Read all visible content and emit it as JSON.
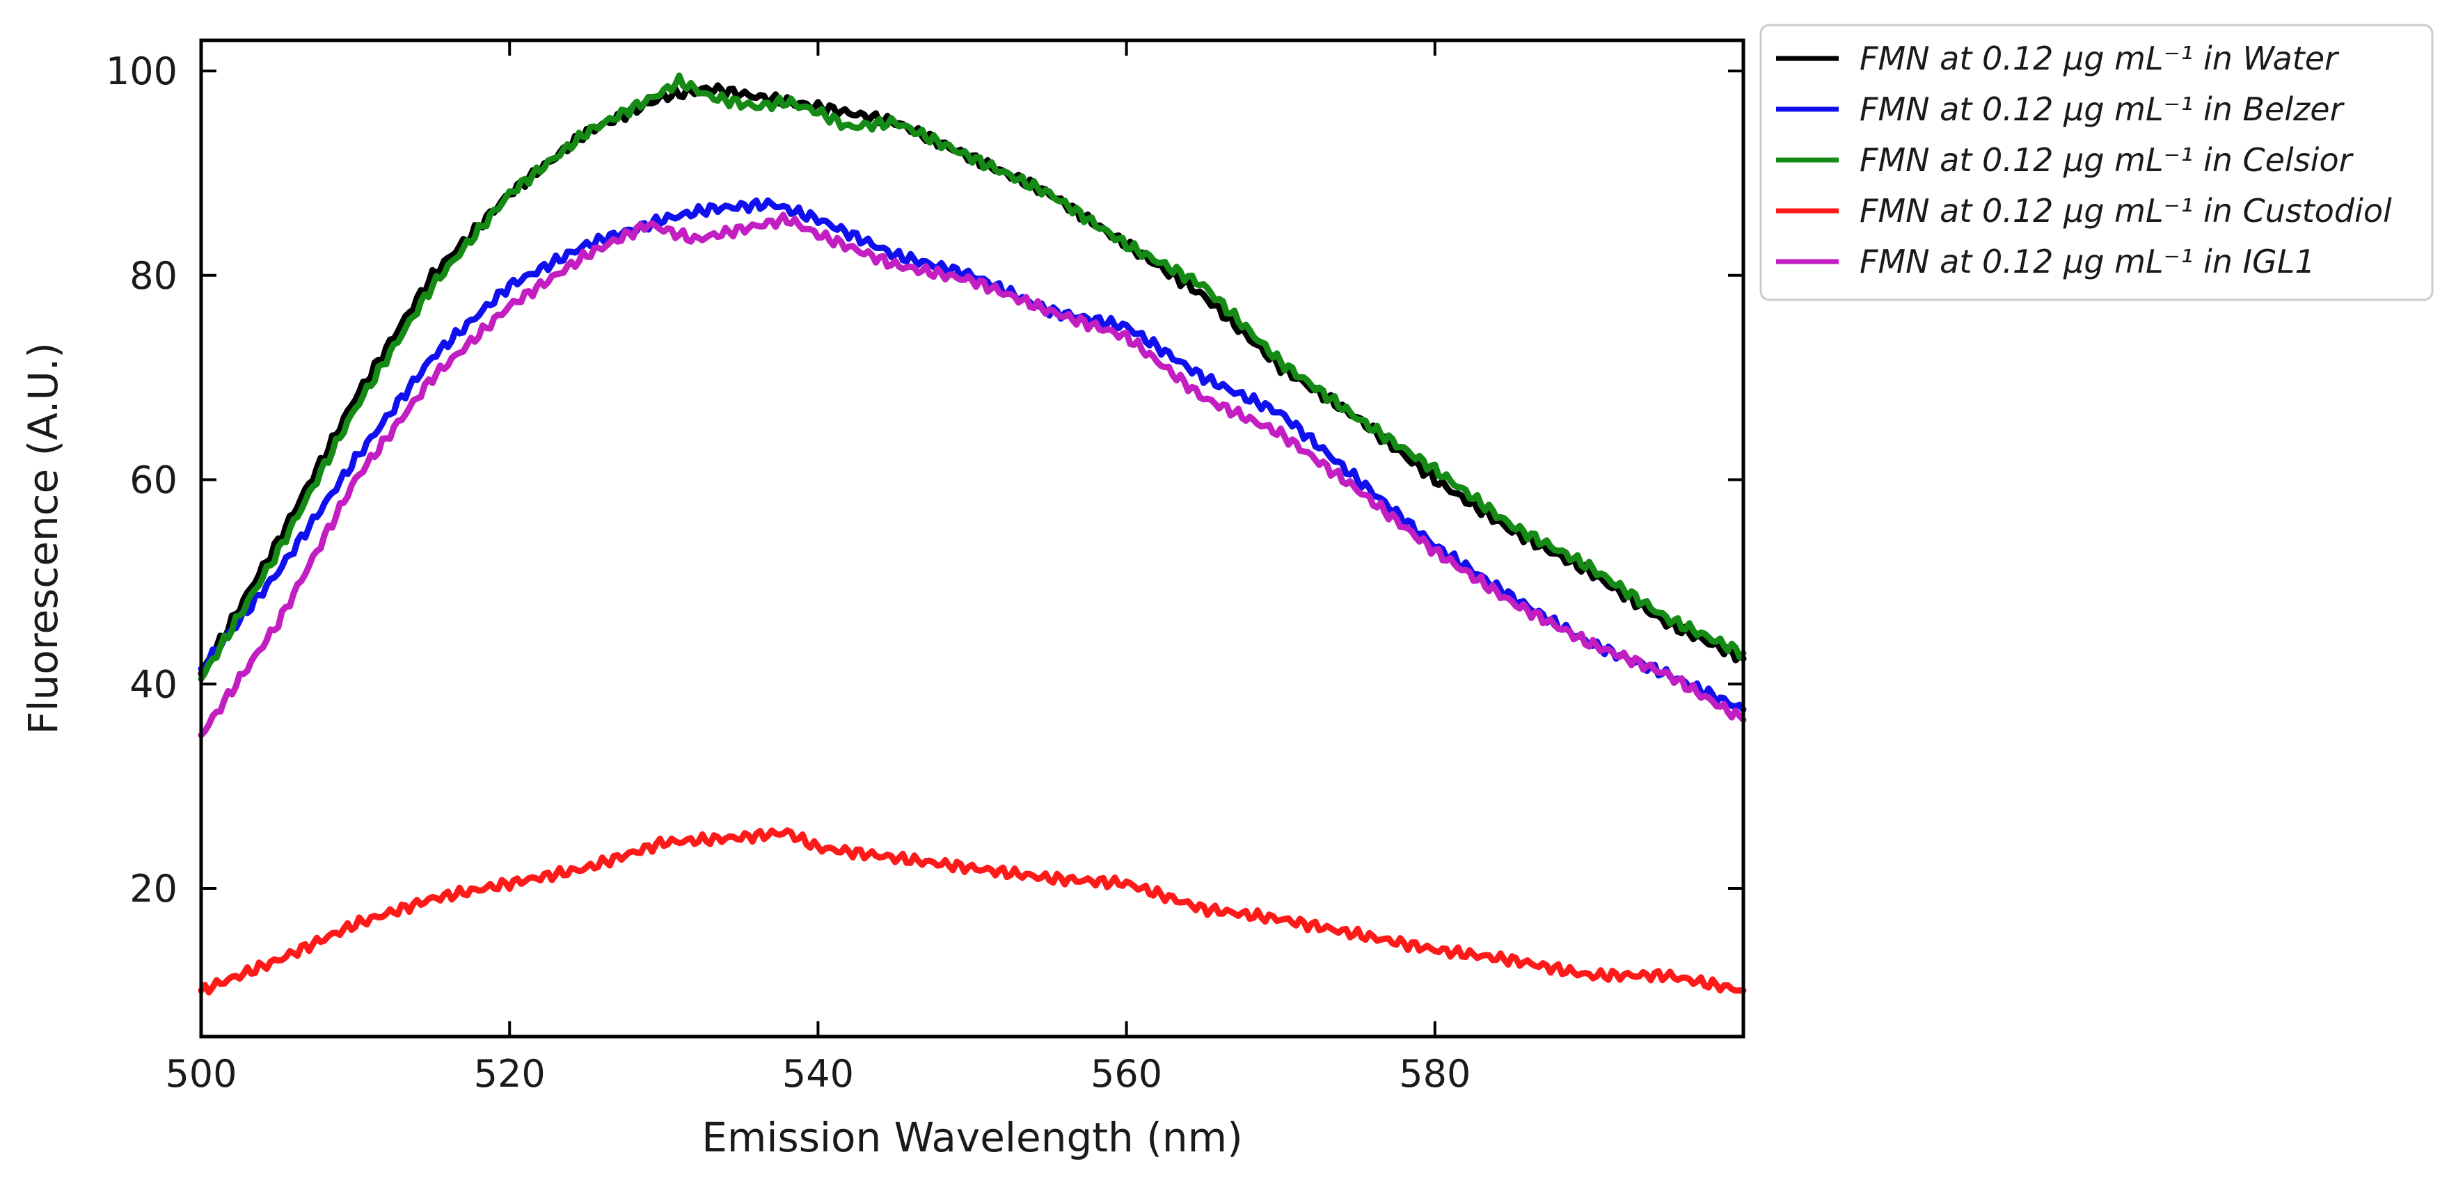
{
  "chart_data": {
    "type": "line",
    "title": "",
    "xlabel": "Emission Wavelength (nm)",
    "ylabel": "Fluorescence (A.U.)",
    "xlim": [
      500,
      600
    ],
    "ylim": [
      5.5,
      103
    ],
    "xticks": [
      500,
      520,
      540,
      560,
      580
    ],
    "yticks": [
      20,
      40,
      60,
      80,
      100
    ],
    "grid": false,
    "legend_position": "outside-top-right",
    "series": [
      {
        "name": "FMN at 0.12 µg mL⁻¹ in Water",
        "color": "#000000",
        "x": [
          500,
          505,
          510,
          515,
          520,
          525,
          530,
          533,
          536,
          540,
          545,
          550,
          555,
          560,
          565,
          570,
          575,
          580,
          585,
          590,
          595,
          600
        ],
        "y": [
          41,
          54,
          68,
          80,
          88,
          94,
          97.5,
          98.3,
          97.5,
          96.5,
          95,
          91.5,
          88,
          83,
          78,
          71,
          66,
          60,
          55,
          51,
          46,
          42.5
        ]
      },
      {
        "name": "FMN at 0.12 µg mL⁻¹ in Belzer",
        "color": "#1010ee",
        "x": [
          500,
          505,
          510,
          515,
          520,
          525,
          530,
          533,
          537,
          540,
          545,
          550,
          555,
          560,
          565,
          570,
          575,
          580,
          585,
          590,
          595,
          600
        ],
        "y": [
          41.5,
          51,
          62,
          72,
          79,
          83,
          85.5,
          86.5,
          87,
          85.5,
          82,
          80,
          76.5,
          75,
          70,
          66.5,
          60,
          53.5,
          48.5,
          44,
          41,
          37.5
        ]
      },
      {
        "name": "FMN at 0.12 µg mL⁻¹ in Celsior",
        "color": "#158a15",
        "x": [
          500,
          505,
          510,
          515,
          520,
          525,
          530,
          531,
          533,
          536,
          538,
          540,
          542,
          545,
          550,
          555,
          560,
          565,
          570,
          575,
          580,
          585,
          590,
          595,
          600
        ],
        "y": [
          40.5,
          53,
          67,
          79,
          88,
          94,
          98,
          99,
          97.5,
          96.5,
          97,
          96,
          94.5,
          95,
          91.5,
          88,
          83,
          79,
          71.5,
          66,
          61,
          55.5,
          51.5,
          46.5,
          43
        ]
      },
      {
        "name": "FMN at 0.12 µg mL⁻¹ in Custodiol",
        "color": "#ff1a1a",
        "x": [
          500,
          505,
          510,
          515,
          520,
          525,
          530,
          535,
          538,
          540,
          545,
          550,
          555,
          560,
          565,
          570,
          575,
          580,
          585,
          590,
          595,
          600
        ],
        "y": [
          10,
          13,
          16.5,
          19,
          20.5,
          22,
          24.5,
          25,
          25.5,
          24,
          23,
          22,
          21,
          20.5,
          18,
          17,
          15.5,
          14,
          13,
          11.5,
          11.5,
          10
        ]
      },
      {
        "name": "FMN at 0.12 µg mL⁻¹ in IGL1",
        "color": "#c21ec2",
        "x": [
          500,
          505,
          510,
          515,
          520,
          525,
          529,
          532,
          535,
          538,
          540,
          545,
          550,
          555,
          560,
          565,
          570,
          575,
          580,
          585,
          590,
          595,
          600
        ],
        "y": [
          35,
          46,
          60,
          70,
          77,
          82,
          85,
          83.5,
          84.5,
          85.5,
          84,
          81,
          79.5,
          76.5,
          74,
          68,
          64.5,
          59,
          53,
          48,
          44,
          41,
          36.5
        ]
      }
    ]
  }
}
